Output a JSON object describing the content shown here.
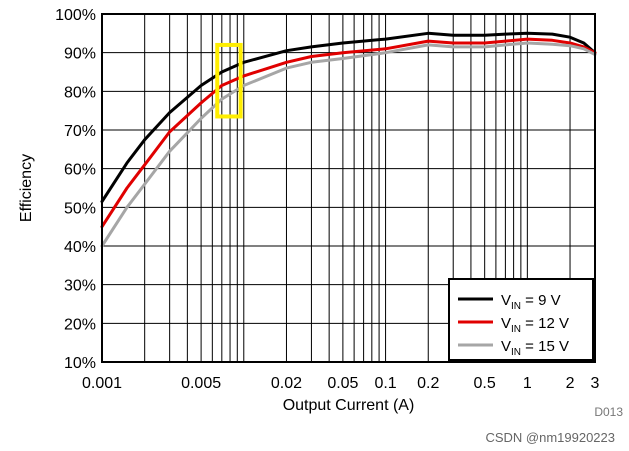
{
  "chart_data": {
    "type": "line",
    "xlabel": "Output Current (A)",
    "ylabel": "Efficiency",
    "xscale": "log",
    "xlim": [
      0.001,
      3
    ],
    "ylim": [
      10,
      100
    ],
    "x_ticks": [
      {
        "value": 0.001,
        "label": "0.001"
      },
      {
        "value": 0.005,
        "label": "0.005"
      },
      {
        "value": 0.02,
        "label": "0.02"
      },
      {
        "value": 0.05,
        "label": "0.05"
      },
      {
        "value": 0.1,
        "label": "0.1"
      },
      {
        "value": 0.2,
        "label": "0.2"
      },
      {
        "value": 0.5,
        "label": "0.5"
      },
      {
        "value": 1,
        "label": "1"
      },
      {
        "value": 2,
        "label": "2"
      },
      {
        "value": 3,
        "label": "3"
      }
    ],
    "y_ticks": [
      {
        "value": 10,
        "label": "10%"
      },
      {
        "value": 20,
        "label": "20%"
      },
      {
        "value": 30,
        "label": "30%"
      },
      {
        "value": 40,
        "label": "40%"
      },
      {
        "value": 50,
        "label": "50%"
      },
      {
        "value": 60,
        "label": "60%"
      },
      {
        "value": 70,
        "label": "70%"
      },
      {
        "value": 80,
        "label": "80%"
      },
      {
        "value": 90,
        "label": "90%"
      },
      {
        "value": 100,
        "label": "100%"
      }
    ],
    "grid": true,
    "legend_position": "bottom-right",
    "series": [
      {
        "name": "VIN = 9 V",
        "label_parts": {
          "prefix": "V",
          "sub": "IN",
          "suffix": " = 9 V"
        },
        "color": "#000000",
        "x": [
          0.001,
          0.0015,
          0.002,
          0.003,
          0.005,
          0.007,
          0.01,
          0.02,
          0.03,
          0.05,
          0.1,
          0.2,
          0.3,
          0.5,
          0.7,
          1,
          1.5,
          2,
          2.5,
          3
        ],
        "y": [
          51.5,
          61.5,
          67.5,
          74.5,
          81.5,
          85,
          87.5,
          90.5,
          91.5,
          92.5,
          93.5,
          95,
          94.5,
          94.5,
          94.8,
          95,
          94.8,
          94,
          92.5,
          90
        ]
      },
      {
        "name": "VIN = 12 V",
        "label_parts": {
          "prefix": "V",
          "sub": "IN",
          "suffix": " = 12 V"
        },
        "color": "#e00000",
        "x": [
          0.001,
          0.0015,
          0.002,
          0.003,
          0.005,
          0.007,
          0.01,
          0.02,
          0.03,
          0.05,
          0.1,
          0.2,
          0.3,
          0.5,
          0.7,
          1,
          1.5,
          2,
          2.5,
          3
        ],
        "y": [
          45,
          55,
          61,
          69.5,
          77,
          81.5,
          84,
          87.5,
          89,
          90,
          91,
          93,
          92.5,
          92.5,
          93,
          93.5,
          93.2,
          92.5,
          91.5,
          90
        ]
      },
      {
        "name": "VIN = 15 V",
        "label_parts": {
          "prefix": "V",
          "sub": "IN",
          "suffix": " = 15 V"
        },
        "color": "#a6a6a6",
        "x": [
          0.001,
          0.0015,
          0.002,
          0.003,
          0.005,
          0.007,
          0.01,
          0.02,
          0.03,
          0.05,
          0.1,
          0.2,
          0.3,
          0.5,
          0.7,
          1,
          1.5,
          2,
          2.5,
          3
        ],
        "y": [
          40,
          50,
          56,
          64.5,
          73,
          78,
          81.5,
          86,
          87.5,
          88.5,
          90,
          92,
          91.5,
          91.5,
          92,
          92.5,
          92.2,
          91.8,
          91,
          89.5
        ]
      }
    ],
    "annotations": [
      {
        "type": "highlight-box",
        "color": "#ffee00",
        "x_range": [
          0.0065,
          0.0095
        ],
        "y_range": [
          73.5,
          92
        ]
      }
    ],
    "figure_id": "D013"
  },
  "watermark": "CSDN @nm19920223"
}
